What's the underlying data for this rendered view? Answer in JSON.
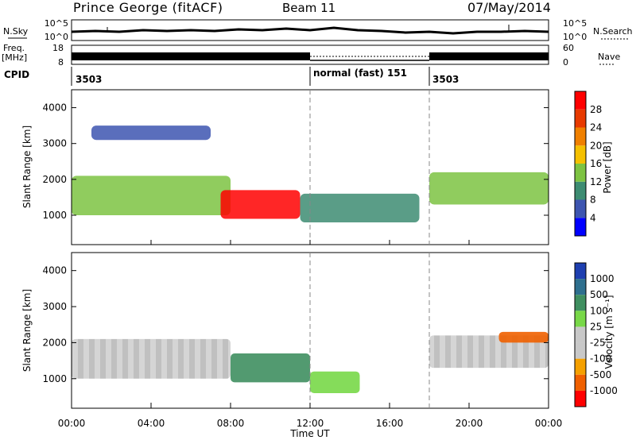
{
  "header": {
    "station": "Prince George (fitACF)",
    "beam": "Beam 11",
    "date": "07/May/2014"
  },
  "noise_panel": {
    "left_label": "N.Sky",
    "right_label": "N.Search",
    "left_ticks": [
      "10^5",
      "10^0"
    ],
    "right_ticks": [
      "10^5",
      "10^0"
    ]
  },
  "freq_panel": {
    "left_label_line1": "Freq.",
    "left_label_line2": "[MHz]",
    "left_ticks": [
      "18",
      "8"
    ],
    "right_label": "Nave",
    "right_ticks": [
      "60",
      "0"
    ]
  },
  "cpid_panel": {
    "label": "CPID",
    "segments": [
      {
        "start_hour": 0,
        "text": "3503"
      },
      {
        "start_hour": 12,
        "text": "normal (fast) 151"
      },
      {
        "start_hour": 18,
        "text": "3503"
      }
    ]
  },
  "power_panel": {
    "ylabel": "Slant Range [km]",
    "yticks": [
      "4000",
      "3000",
      "2000",
      "1000"
    ],
    "colorbar_label": "Power [dB]",
    "colorbar_ticks": [
      "28",
      "24",
      "20",
      "16",
      "12",
      "8",
      "4"
    ],
    "colors": [
      "#0000ff",
      "#3d55b0",
      "#3d8c72",
      "#7dc342",
      "#f5c000",
      "#f08000",
      "#e83a00",
      "#ff0000"
    ]
  },
  "velocity_panel": {
    "ylabel": "Slant Range [km]",
    "yticks": [
      "4000",
      "3000",
      "2000",
      "1000"
    ],
    "colorbar_label": "Velocity [m s⁻¹]",
    "colorbar_ticks": [
      "1000",
      "500",
      "100",
      "25",
      "-25",
      "-100",
      "-500",
      "-1000"
    ],
    "colors": [
      "#1e3fb0",
      "#2e6f8e",
      "#3f8f60",
      "#78d848",
      "#c8c8c8",
      "#c8c8c8",
      "#f5a000",
      "#f06000",
      "#ff0000"
    ]
  },
  "xaxis": {
    "label": "Time UT",
    "ticks": [
      "00:00",
      "04:00",
      "08:00",
      "12:00",
      "16:00",
      "20:00",
      "00:00"
    ]
  },
  "chart_data": {
    "type": "heatmap",
    "title": "Prince George (fitACF)",
    "x_range_hours": [
      0,
      24
    ],
    "y_range_km": [
      180,
      4500
    ],
    "grid": false,
    "mode_change_hours": [
      12,
      18
    ],
    "freq_mhz": {
      "before_12": 11,
      "12_to_18": 10,
      "after_18": 11
    },
    "power_regions": [
      {
        "t0": 0.0,
        "t1": 8.0,
        "r0": 1000,
        "r1": 2100,
        "power_db": 14
      },
      {
        "t0": 7.5,
        "t1": 11.5,
        "r0": 900,
        "r1": 1700,
        "power_db": 28
      },
      {
        "t0": 1.0,
        "t1": 7.0,
        "r0": 3100,
        "r1": 3500,
        "power_db": 6
      },
      {
        "t0": 11.5,
        "t1": 17.5,
        "r0": 800,
        "r1": 1600,
        "power_db": 10
      },
      {
        "t0": 18.0,
        "t1": 24.0,
        "r0": 1300,
        "r1": 2200,
        "power_db": 12
      }
    ],
    "velocity_regions": [
      {
        "t0": 0.0,
        "t1": 8.0,
        "r0": 1000,
        "r1": 2100,
        "velocity_ms": 0
      },
      {
        "t0": 8.0,
        "t1": 12.0,
        "r0": 900,
        "r1": 1700,
        "velocity_ms": 300
      },
      {
        "t0": 12.0,
        "t1": 14.5,
        "r0": 600,
        "r1": 1200,
        "velocity_ms": 100
      },
      {
        "t0": 18.0,
        "t1": 24.0,
        "r0": 1300,
        "r1": 2200,
        "velocity_ms": 0
      },
      {
        "t0": 21.5,
        "t1": 24.0,
        "r0": 2000,
        "r1": 2300,
        "velocity_ms": -150
      }
    ]
  }
}
